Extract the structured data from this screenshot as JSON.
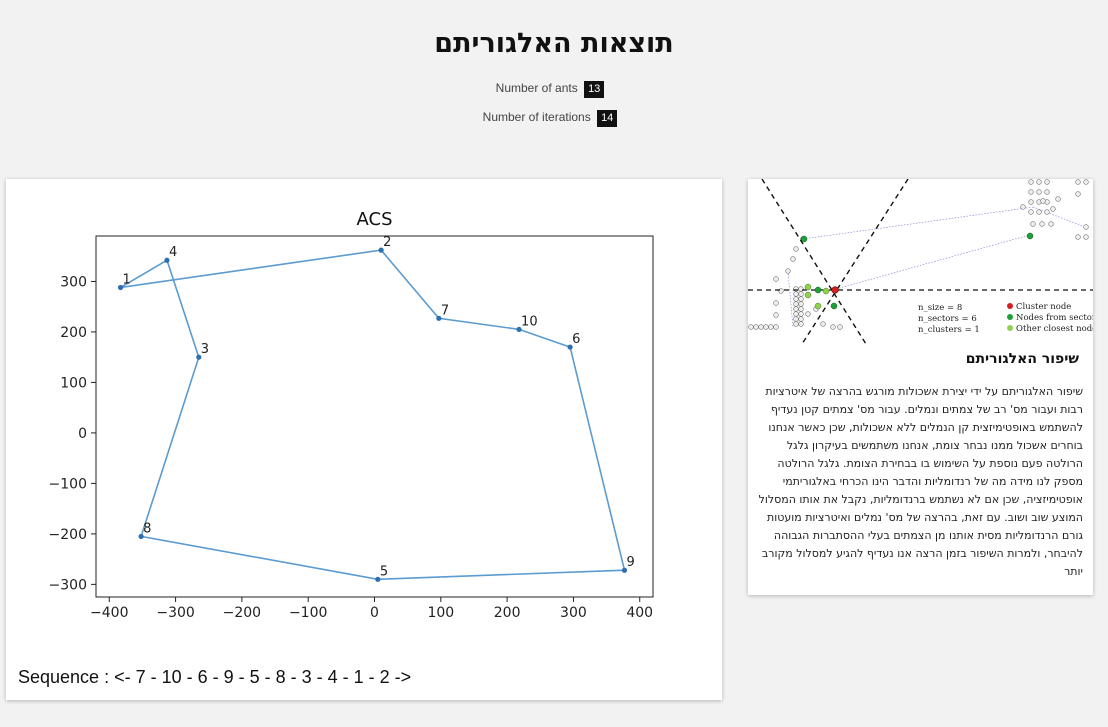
{
  "header": {
    "title": "תוצאות האלגוריתם",
    "ants_label": "Number of ants",
    "ants_value": "13",
    "iterations_label": "Number of iterations",
    "iterations_value": "14"
  },
  "result": {
    "sequence": "Sequence : <- 7 - 10 - 6 - 9 - 5 - 8 - 3 - 4 - 1 - 2 ->"
  },
  "chart_data": {
    "type": "line",
    "title": "ACS",
    "xlabel": "",
    "ylabel": "",
    "xlim": [
      -420,
      420
    ],
    "ylim": [
      -325,
      390
    ],
    "xticks": [
      -400,
      -300,
      -200,
      -100,
      0,
      100,
      200,
      300,
      400
    ],
    "yticks": [
      -300,
      -200,
      -100,
      0,
      100,
      200,
      300
    ],
    "grid": false,
    "line_color": "#5b9bd0",
    "points": [
      {
        "label": "1",
        "x": -383,
        "y": 288
      },
      {
        "label": "2",
        "x": 10,
        "y": 362
      },
      {
        "label": "3",
        "x": -265,
        "y": 150
      },
      {
        "label": "4",
        "x": -313,
        "y": 342
      },
      {
        "label": "5",
        "x": 5,
        "y": -290
      },
      {
        "label": "6",
        "x": 295,
        "y": 170
      },
      {
        "label": "7",
        "x": 97,
        "y": 227
      },
      {
        "label": "8",
        "x": -352,
        "y": -205
      },
      {
        "label": "9",
        "x": 377,
        "y": -272
      },
      {
        "label": "10",
        "x": 218,
        "y": 205
      }
    ],
    "route": [
      "1",
      "2",
      "7",
      "10",
      "6",
      "9",
      "5",
      "8",
      "3",
      "4",
      "1"
    ]
  },
  "info": {
    "title": "שיפור האלגוריתם",
    "body": "שיפור האלגוריתם על ידי יצירת אשכולות מורגש בהרצה של איטרציות רבות ועבור מס' רב של צמתים ונמלים. עבור מס' צמתים קטן נעדיף להשתמש באופטימיזצית קן הנמלים ללא אשכולות, שכן כאשר אנחנו בוחרים אשכול ממנו נבחר צומת, אנחנו משתמשים בעיקרון גלגל הרולטה פעם נוספת על השימוש בו בבחירת הצומת. גלגל הרולטה מספק לנו מידה מה של רנדומליות והדבר הינו הכרחי באלגוריתמי אופטימיזציה, שכן אם לא נשתמש ברנדומליות, נקבל את אותו המסלול המוצע שוב ושוב. עם זאת, בהרצה של מס' נמלים ואיטרציות מועטות גורם הרנדומליות מסית אותנו מן הצמתים בעלי ההסתברות הגבוהה להיבחר, ולמרות השיפור בזמן הרצה אנו נעדיף להגיע למסלול מקורב יותר",
    "diagram": {
      "params": [
        "n_size = 8",
        "n_sectors = 6",
        "n_clusters = 1"
      ],
      "legend": [
        {
          "label": "Cluster node",
          "color": "#d62020"
        },
        {
          "label": "Nodes from sectors",
          "color": "#1f9e3a"
        },
        {
          "label": "Other closest nodes",
          "color": "#8fd14f"
        }
      ]
    }
  }
}
